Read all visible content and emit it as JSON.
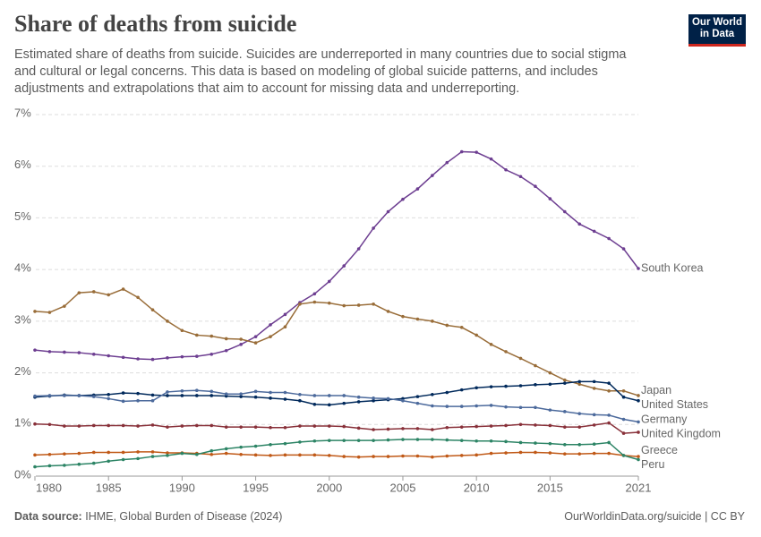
{
  "chart_data": {
    "type": "line",
    "title": "Share of deaths from suicide",
    "subtitle": "Estimated share of deaths from suicide. Suicides are underreported in many countries due to social stigma and cultural or legal concerns. This data is based on modeling of global suicide patterns, and includes adjustments and extrapolations that aim to account for missing data and underreporting.",
    "logo": "Our World in Data",
    "source_label": "Data source:",
    "source": "IHME, Global Burden of Disease (2024)",
    "url": "OurWorldinData.org/suicide | CC BY",
    "x": [
      1980,
      1981,
      1982,
      1983,
      1984,
      1985,
      1986,
      1987,
      1988,
      1989,
      1990,
      1991,
      1992,
      1993,
      1994,
      1995,
      1996,
      1997,
      1998,
      1999,
      2000,
      2001,
      2002,
      2003,
      2004,
      2005,
      2006,
      2007,
      2008,
      2009,
      2010,
      2011,
      2012,
      2013,
      2014,
      2015,
      2016,
      2017,
      2018,
      2019,
      2020,
      2021
    ],
    "xlim": [
      1980,
      2021
    ],
    "xticks": [
      1980,
      1985,
      1990,
      1995,
      2000,
      2005,
      2010,
      2015,
      2021
    ],
    "ylim": [
      0,
      7
    ],
    "yticks": [
      {
        "value": 0,
        "label": "0%"
      },
      {
        "value": 1,
        "label": "1%"
      },
      {
        "value": 2,
        "label": "2%"
      },
      {
        "value": 3,
        "label": "3%"
      },
      {
        "value": 4,
        "label": "4%"
      },
      {
        "value": 5,
        "label": "5%"
      },
      {
        "value": 6,
        "label": "6%"
      },
      {
        "value": 7,
        "label": "7%"
      }
    ],
    "grid": true,
    "series": [
      {
        "name": "South Korea",
        "color": "#6d3e91",
        "values": [
          2.44,
          2.41,
          2.4,
          2.39,
          2.36,
          2.33,
          2.3,
          2.27,
          2.26,
          2.29,
          2.31,
          2.32,
          2.36,
          2.43,
          2.55,
          2.7,
          2.93,
          3.13,
          3.36,
          3.53,
          3.77,
          4.07,
          4.4,
          4.8,
          5.12,
          5.36,
          5.56,
          5.82,
          6.07,
          6.28,
          6.27,
          6.14,
          5.93,
          5.8,
          5.61,
          5.37,
          5.12,
          4.88,
          4.74,
          4.6,
          4.4,
          4.02
        ]
      },
      {
        "name": "Japan",
        "color": "#996d39",
        "values": [
          3.19,
          3.17,
          3.29,
          3.55,
          3.57,
          3.51,
          3.62,
          3.46,
          3.22,
          3.0,
          2.82,
          2.73,
          2.71,
          2.66,
          2.65,
          2.58,
          2.7,
          2.89,
          3.33,
          3.37,
          3.35,
          3.3,
          3.31,
          3.33,
          3.19,
          3.09,
          3.04,
          3.0,
          2.92,
          2.88,
          2.73,
          2.55,
          2.41,
          2.28,
          2.14,
          2.0,
          1.86,
          1.78,
          1.7,
          1.65,
          1.65,
          1.56
        ]
      },
      {
        "name": "United States",
        "color": "#00295b",
        "values": [
          1.53,
          1.55,
          1.57,
          1.56,
          1.57,
          1.58,
          1.61,
          1.6,
          1.57,
          1.56,
          1.56,
          1.56,
          1.56,
          1.55,
          1.54,
          1.53,
          1.51,
          1.49,
          1.46,
          1.39,
          1.38,
          1.41,
          1.44,
          1.46,
          1.48,
          1.5,
          1.54,
          1.58,
          1.62,
          1.67,
          1.71,
          1.73,
          1.74,
          1.75,
          1.77,
          1.78,
          1.8,
          1.83,
          1.83,
          1.8,
          1.53,
          1.46
        ]
      },
      {
        "name": "Germany",
        "color": "#4c6a9c",
        "values": [
          1.55,
          1.56,
          1.56,
          1.56,
          1.54,
          1.5,
          1.45,
          1.46,
          1.46,
          1.63,
          1.65,
          1.66,
          1.64,
          1.59,
          1.59,
          1.64,
          1.62,
          1.62,
          1.58,
          1.56,
          1.56,
          1.56,
          1.53,
          1.51,
          1.5,
          1.46,
          1.41,
          1.36,
          1.35,
          1.35,
          1.36,
          1.37,
          1.34,
          1.33,
          1.33,
          1.28,
          1.25,
          1.21,
          1.19,
          1.18,
          1.1,
          1.05
        ]
      },
      {
        "name": "United Kingdom",
        "color": "#883039",
        "values": [
          1.01,
          1.0,
          0.97,
          0.97,
          0.98,
          0.98,
          0.98,
          0.97,
          0.99,
          0.95,
          0.97,
          0.98,
          0.98,
          0.95,
          0.95,
          0.95,
          0.94,
          0.94,
          0.97,
          0.97,
          0.97,
          0.96,
          0.93,
          0.9,
          0.91,
          0.92,
          0.92,
          0.9,
          0.94,
          0.95,
          0.96,
          0.97,
          0.98,
          1.0,
          0.99,
          0.98,
          0.95,
          0.95,
          0.99,
          1.03,
          0.83,
          0.85
        ]
      },
      {
        "name": "Greece",
        "color": "#c05917",
        "values": [
          0.41,
          0.42,
          0.43,
          0.44,
          0.46,
          0.46,
          0.46,
          0.47,
          0.47,
          0.45,
          0.45,
          0.44,
          0.42,
          0.44,
          0.42,
          0.41,
          0.4,
          0.41,
          0.41,
          0.41,
          0.4,
          0.38,
          0.37,
          0.38,
          0.38,
          0.39,
          0.39,
          0.37,
          0.39,
          0.4,
          0.41,
          0.44,
          0.45,
          0.46,
          0.46,
          0.45,
          0.43,
          0.43,
          0.44,
          0.44,
          0.4,
          0.38
        ]
      },
      {
        "name": "Peru",
        "color": "#2c8465",
        "values": [
          0.18,
          0.2,
          0.21,
          0.23,
          0.25,
          0.29,
          0.32,
          0.34,
          0.38,
          0.4,
          0.44,
          0.42,
          0.49,
          0.53,
          0.56,
          0.58,
          0.61,
          0.63,
          0.66,
          0.68,
          0.69,
          0.69,
          0.69,
          0.69,
          0.7,
          0.71,
          0.71,
          0.71,
          0.7,
          0.69,
          0.68,
          0.68,
          0.67,
          0.65,
          0.64,
          0.63,
          0.61,
          0.61,
          0.62,
          0.65,
          0.4,
          0.32
        ]
      }
    ]
  }
}
